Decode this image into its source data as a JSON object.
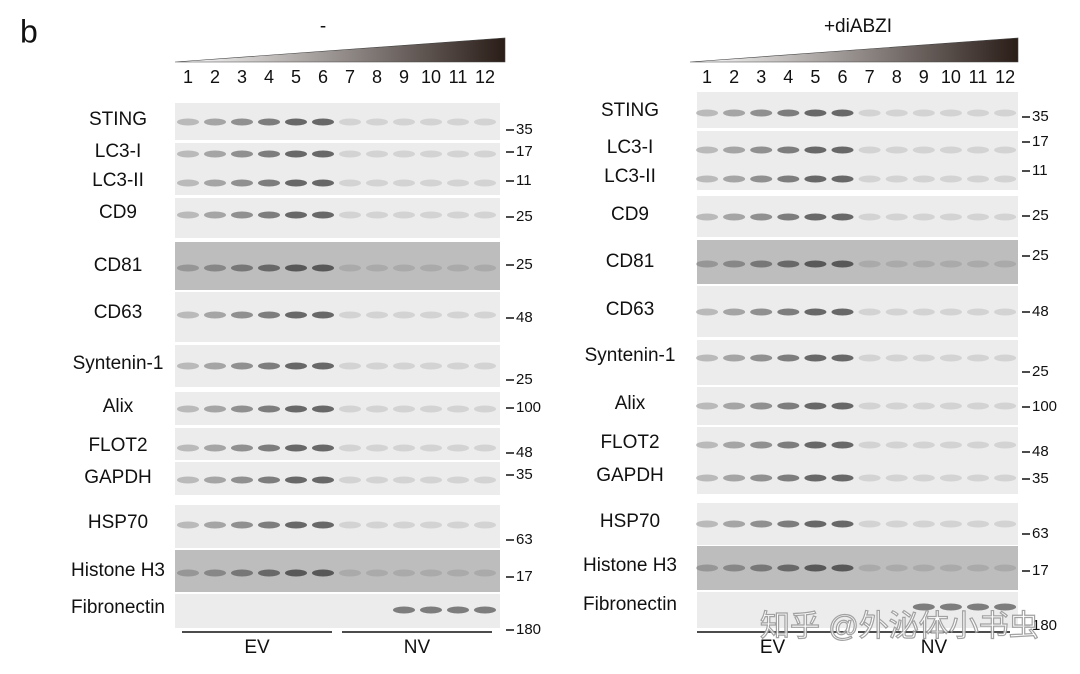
{
  "panel_label": "b",
  "panels": [
    {
      "title": "-",
      "lanes": [
        "1",
        "2",
        "3",
        "4",
        "5",
        "6",
        "7",
        "8",
        "9",
        "10",
        "11",
        "12"
      ],
      "rows": [
        {
          "labels": [
            "STING"
          ],
          "markers": [
            35
          ]
        },
        {
          "labels": [
            "LC3-I",
            "LC3-II"
          ],
          "markers": [
            17,
            11
          ]
        },
        {
          "labels": [
            "CD9"
          ],
          "markers": [
            25
          ]
        },
        {
          "labels": [
            "CD81"
          ],
          "markers": [
            25
          ]
        },
        {
          "labels": [
            "CD63"
          ],
          "markers": [
            48
          ]
        },
        {
          "labels": [
            "Syntenin-1"
          ],
          "markers": [
            25
          ]
        },
        {
          "labels": [
            "Alix"
          ],
          "markers": [
            100
          ]
        },
        {
          "labels": [
            "FLOT2"
          ],
          "markers": [
            48
          ]
        },
        {
          "labels": [
            "GAPDH"
          ],
          "markers": [
            35
          ]
        },
        {
          "labels": [
            "HSP70"
          ],
          "markers": [
            63
          ]
        },
        {
          "labels": [
            "Histone H3"
          ],
          "markers": [
            17
          ]
        },
        {
          "labels": [
            "Fibronectin"
          ],
          "markers": [
            180
          ]
        }
      ],
      "groups": [
        "EV",
        "NV"
      ]
    },
    {
      "title": "+diABZI",
      "lanes": [
        "1",
        "2",
        "3",
        "4",
        "5",
        "6",
        "7",
        "8",
        "9",
        "10",
        "11",
        "12"
      ],
      "rows": [
        {
          "labels": [
            "STING"
          ],
          "markers": [
            35
          ]
        },
        {
          "labels": [
            "LC3-I",
            "LC3-II"
          ],
          "markers": [
            17,
            11
          ]
        },
        {
          "labels": [
            "CD9"
          ],
          "markers": [
            25
          ]
        },
        {
          "labels": [
            "CD81"
          ],
          "markers": [
            25
          ]
        },
        {
          "labels": [
            "CD63"
          ],
          "markers": [
            48
          ]
        },
        {
          "labels": [
            "Syntenin-1"
          ],
          "markers": [
            25
          ]
        },
        {
          "labels": [
            "Alix"
          ],
          "markers": [
            100
          ]
        },
        {
          "labels": [
            "FLOT2"
          ],
          "markers": [
            48
          ]
        },
        {
          "labels": [
            "GAPDH"
          ],
          "markers": [
            35
          ]
        },
        {
          "labels": [
            "HSP70"
          ],
          "markers": [
            63
          ]
        },
        {
          "labels": [
            "Histone H3"
          ],
          "markers": [
            17
          ]
        },
        {
          "labels": [
            "Fibronectin"
          ],
          "markers": [
            180
          ]
        }
      ],
      "groups": [
        "EV",
        "NV"
      ]
    }
  ],
  "watermark": "知乎 @外泌体小书虫"
}
